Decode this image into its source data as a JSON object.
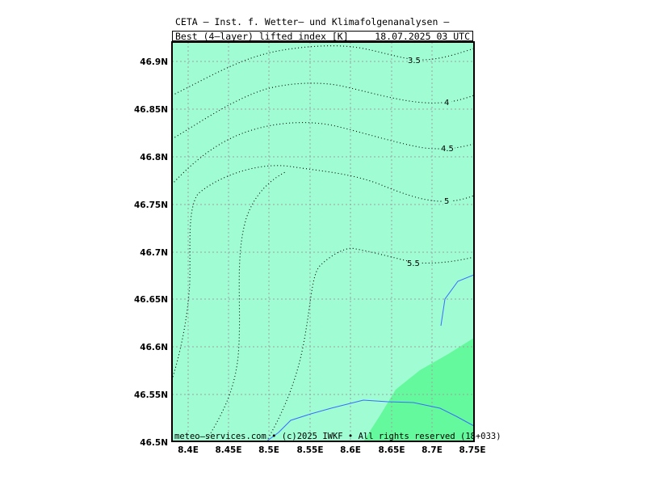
{
  "header": {
    "title": "CETA — Inst. f. Wetter— und Klimafolgenanalysen —",
    "field_name": "Best_(4—layer)_lifted_index_[K]",
    "valid_time": "18.07.2025 03 UTC"
  },
  "footer": {
    "credit": "meteo—services.com • (c)2025 IWKF • All rights reserved (18+033)"
  },
  "axes": {
    "x_ticks": [
      "8.4E",
      "8.45E",
      "8.5E",
      "8.55E",
      "8.6E",
      "8.65E",
      "8.7E",
      "8.75E"
    ],
    "y_ticks": [
      "46.9N",
      "46.85N",
      "46.8N",
      "46.75N",
      "46.7N",
      "46.65N",
      "46.6N",
      "46.55N",
      "46.5N"
    ]
  },
  "contours": {
    "labels": [
      "3.5",
      "4",
      "4.5",
      "5",
      "5.5"
    ]
  },
  "colors": {
    "fill_light": "#9ffcd3",
    "fill_mid": "#63f99c",
    "grid": "#a0a0a0",
    "boundary": "#3a6cff",
    "contour": "#000000"
  }
}
